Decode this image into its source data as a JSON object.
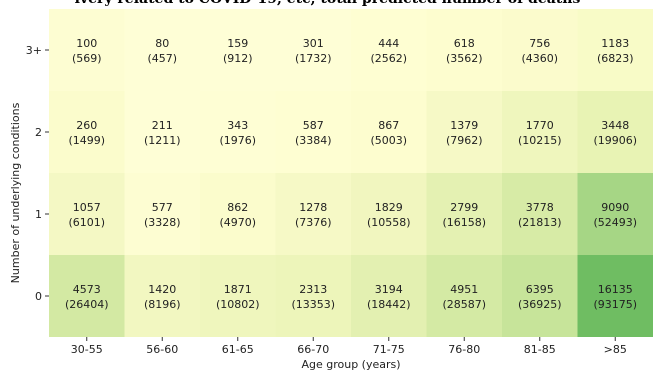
{
  "header": {
    "title_fragment": "ivery related to COVID-19, etc, total predicted number of deaths"
  },
  "chart_data": {
    "type": "heatmap",
    "title": "",
    "xlabel": "Age group (years)",
    "ylabel": "Number of underlying conditions",
    "x_categories": [
      "30-55",
      "56-60",
      "61-65",
      "66-70",
      "71-75",
      "76-80",
      "81-85",
      ">85"
    ],
    "y_categories": [
      "3+",
      "2",
      "1",
      "0"
    ],
    "rows": [
      {
        "condition": "3+",
        "values": [
          "100",
          "80",
          "159",
          "301",
          "444",
          "618",
          "756",
          "1183"
        ],
        "totals": [
          "(569)",
          "(457)",
          "(912)",
          "(1732)",
          "(2562)",
          "(3562)",
          "(4360)",
          "(6823)"
        ],
        "colors": [
          "#fdfdd2",
          "#fefed6",
          "#fefed6",
          "#fefed6",
          "#fefed2",
          "#fdfdcf",
          "#fbfbcc",
          "#f8fbc7"
        ]
      },
      {
        "condition": "2",
        "values": [
          "260",
          "211",
          "343",
          "587",
          "867",
          "1379",
          "1770",
          "3448"
        ],
        "totals": [
          "(1499)",
          "(1211)",
          "(1976)",
          "(3384)",
          "(5003)",
          "(7962)",
          "(10215)",
          "(19906)"
        ],
        "colors": [
          "#fbfccc",
          "#fefed6",
          "#fefed4",
          "#fefed2",
          "#fdfdcf",
          "#f6f9c6",
          "#eff6bd",
          "#e8f3b4"
        ]
      },
      {
        "condition": "1",
        "values": [
          "1057",
          "577",
          "862",
          "1278",
          "1829",
          "2799",
          "3778",
          "9090"
        ],
        "totals": [
          "(6101)",
          "(3328)",
          "(4970)",
          "(7376)",
          "(10558)",
          "(16158)",
          "(21813)",
          "(52493)"
        ],
        "colors": [
          "#f4f8c4",
          "#fdfdd2",
          "#fbfccc",
          "#f6f9c6",
          "#f1f6bf",
          "#e4f1b2",
          "#d7eba6",
          "#a6d685"
        ]
      },
      {
        "condition": "0",
        "values": [
          "4573",
          "1420",
          "1871",
          "2313",
          "3194",
          "4951",
          "6395",
          "16135"
        ],
        "totals": [
          "(26404)",
          "(8196)",
          "(10802)",
          "(13353)",
          "(18442)",
          "(28587)",
          "(36925)",
          "(93175)"
        ],
        "colors": [
          "#d3e9a3",
          "#f2f7c1",
          "#eff6bd",
          "#edf5ba",
          "#e3f0b1",
          "#d4eaa4",
          "#c7e49a",
          "#6fbd62"
        ]
      }
    ],
    "grid": false,
    "legend": "none"
  }
}
